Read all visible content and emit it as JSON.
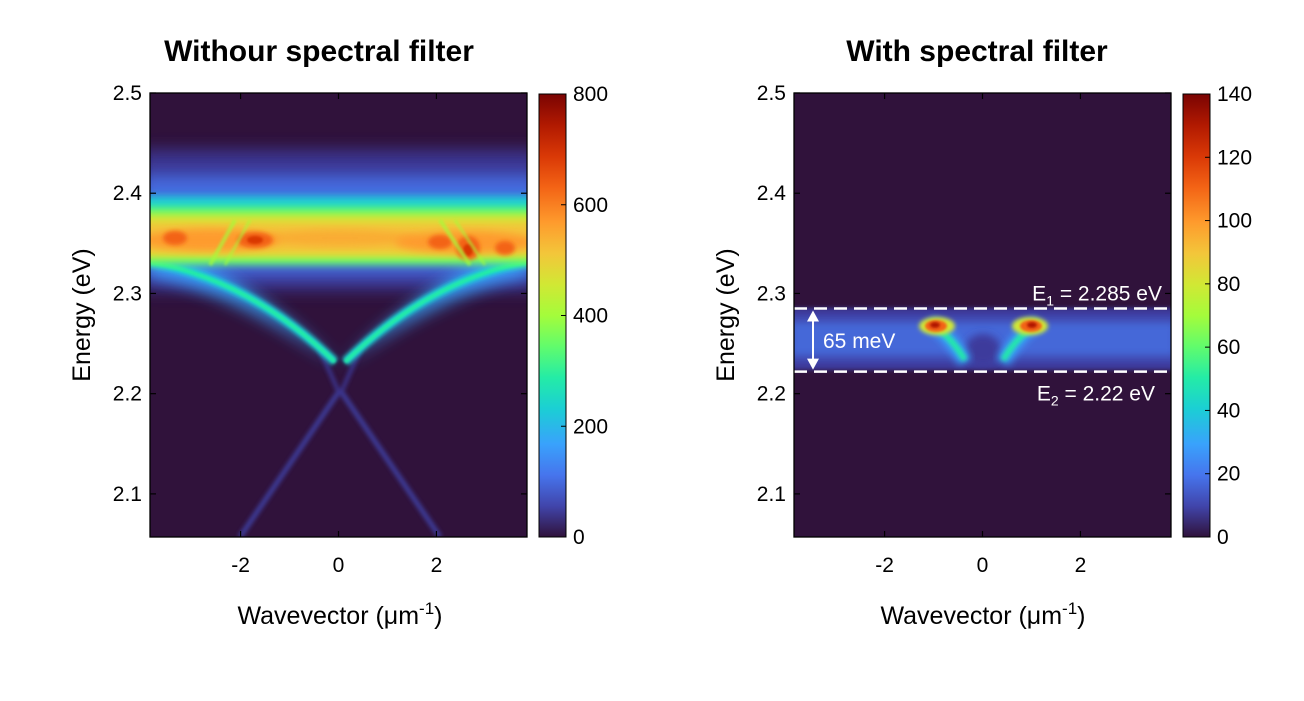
{
  "chart_data": [
    {
      "type": "heatmap",
      "title": "Withour spectral filter",
      "xlabel": "Wavevector (μm",
      "xlabel_sup": "-1",
      "xlabel_tail": ")",
      "ylabel": "Energy (eV)",
      "xlim": [
        -3.85,
        3.85
      ],
      "ylim": [
        2.057,
        2.5
      ],
      "xticks": [
        -2,
        0,
        2
      ],
      "xtick_labels": [
        "-2",
        "0",
        "2"
      ],
      "yticks": [
        2.1,
        2.2,
        2.3,
        2.4,
        2.5
      ],
      "ytick_labels": [
        "2.1",
        "2.2",
        "2.3",
        "2.4",
        "2.5"
      ],
      "colorbar": {
        "range": [
          0,
          800
        ],
        "ticks": [
          0,
          200,
          400,
          600,
          800
        ],
        "tick_labels": [
          "0",
          "200",
          "400",
          "600",
          "800"
        ]
      },
      "features": [
        {
          "name": "emission-band",
          "energy_center": 2.355,
          "energy_halfwidth": 0.025,
          "peak_intensity": 780
        },
        {
          "name": "upper-glow",
          "energy_range": [
            2.33,
            2.43
          ],
          "peak_intensity": 260
        },
        {
          "name": "dispersion-branch",
          "k_range": [
            0.2,
            3.85
          ],
          "energy_range": [
            2.235,
            2.34
          ],
          "peak_intensity": 330
        },
        {
          "name": "lower-x-branch",
          "k_range": [
            0,
            2
          ],
          "energy_range": [
            2.057,
            2.2
          ],
          "peak_intensity": 120
        }
      ]
    },
    {
      "type": "heatmap",
      "title": "With spectral filter",
      "xlabel": "Wavevector (μm",
      "xlabel_sup": "-1",
      "xlabel_tail": ")",
      "ylabel": "Energy (eV)",
      "xlim": [
        -3.85,
        3.85
      ],
      "ylim": [
        2.057,
        2.5
      ],
      "xticks": [
        -2,
        0,
        2
      ],
      "xtick_labels": [
        "-2",
        "0",
        "2"
      ],
      "yticks": [
        2.1,
        2.2,
        2.3,
        2.4,
        2.5
      ],
      "ytick_labels": [
        "2.1",
        "2.2",
        "2.3",
        "2.4",
        "2.5"
      ],
      "colorbar": {
        "range": [
          0,
          140
        ],
        "ticks": [
          0,
          20,
          40,
          60,
          80,
          100,
          120,
          140
        ],
        "tick_labels": [
          "0",
          "20",
          "40",
          "60",
          "80",
          "100",
          "120",
          "140"
        ]
      },
      "features": [
        {
          "name": "filter-band",
          "energy_range": [
            2.225,
            2.28
          ],
          "peak_intensity": 25
        },
        {
          "name": "hot-spot-left",
          "k": -1.0,
          "energy": 2.267,
          "peak_intensity": 140
        },
        {
          "name": "hot-spot-right",
          "k": 1.0,
          "energy": 2.267,
          "peak_intensity": 140
        }
      ],
      "annotations": {
        "e1": {
          "prefix": "E",
          "sub": "1",
          "text": " = 2.285 eV",
          "energy": 2.285
        },
        "e2": {
          "prefix": "E",
          "sub": "2",
          "text": " = 2.22 eV",
          "energy": 2.222
        },
        "width_label": "65 meV"
      }
    }
  ]
}
